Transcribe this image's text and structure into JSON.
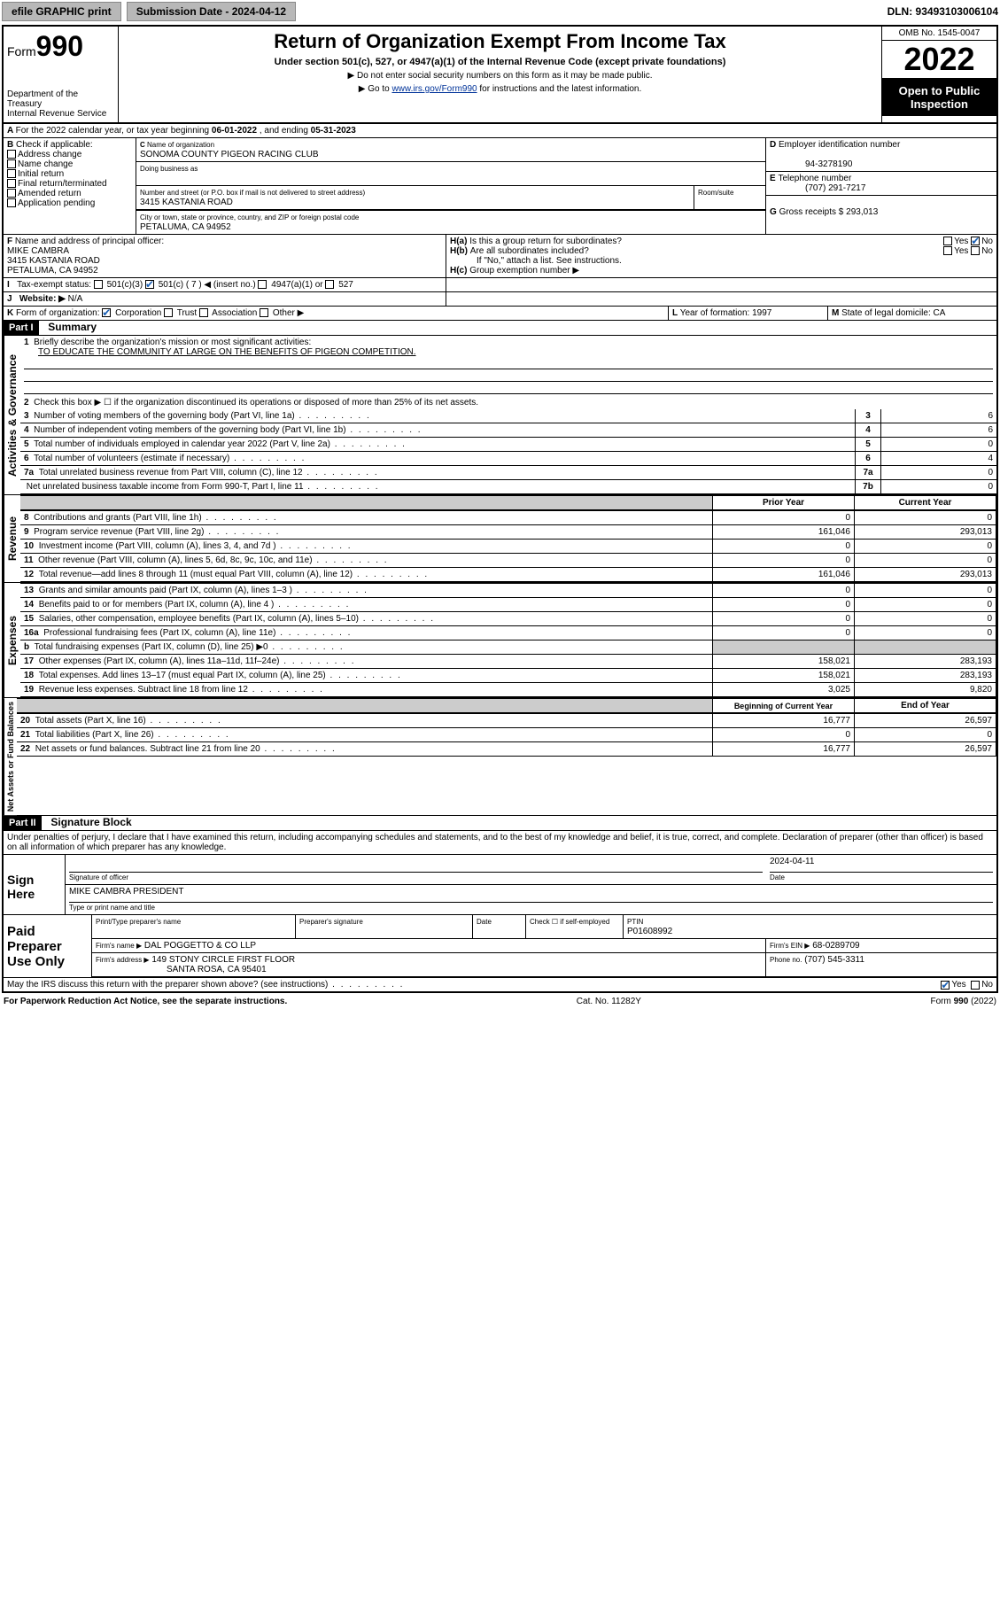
{
  "topbar": {
    "efile": "efile GRAPHIC print",
    "submission_label": "Submission Date - 2024-04-12",
    "dln": "DLN: 93493103006104"
  },
  "header": {
    "form_label": "Form",
    "form_number": "990",
    "dept": "Department of the Treasury",
    "irs": "Internal Revenue Service",
    "title": "Return of Organization Exempt From Income Tax",
    "subtitle": "Under section 501(c), 527, or 4947(a)(1) of the Internal Revenue Code (except private foundations)",
    "note1": "▶ Do not enter social security numbers on this form as it may be made public.",
    "note2_pre": "▶ Go to ",
    "note2_link": "www.irs.gov/Form990",
    "note2_post": " for instructions and the latest information.",
    "omb": "OMB No. 1545-0047",
    "year": "2022",
    "openpublic": "Open to Public Inspection"
  },
  "A": {
    "text": "For the 2022 calendar year, or tax year beginning ",
    "begin": "06-01-2022",
    "mid": " , and ending ",
    "end": "05-31-2023"
  },
  "B": {
    "label": "Check if applicable:",
    "opts": [
      "Address change",
      "Name change",
      "Initial return",
      "Final return/terminated",
      "Amended return",
      "Application pending"
    ]
  },
  "C": {
    "name_label": "Name of organization",
    "name": "SONOMA COUNTY PIGEON RACING CLUB",
    "dba_label": "Doing business as",
    "street_label": "Number and street (or P.O. box if mail is not delivered to street address)",
    "room_label": "Room/suite",
    "street": "3415 KASTANIA ROAD",
    "city_label": "City or town, state or province, country, and ZIP or foreign postal code",
    "city": "PETALUMA, CA  94952"
  },
  "D": {
    "label": "Employer identification number",
    "value": "94-3278190"
  },
  "E": {
    "label": "Telephone number",
    "value": "(707) 291-7217"
  },
  "G": {
    "label": "Gross receipts $",
    "value": "293,013"
  },
  "F": {
    "label": "Name and address of principal officer:",
    "name": "MIKE CAMBRA",
    "street": "3415 KASTANIA ROAD",
    "city": "PETALUMA, CA  94952"
  },
  "H": {
    "a": "Is this a group return for subordinates?",
    "b": "Are all subordinates included?",
    "b_note": "If \"No,\" attach a list. See instructions.",
    "c": "Group exemption number ▶",
    "yes": "Yes",
    "no": "No"
  },
  "I": {
    "label": "Tax-exempt status:",
    "opt1": "501(c)(3)",
    "opt2": "501(c) ( 7 ) ◀ (insert no.)",
    "opt3": "4947(a)(1) or",
    "opt4": "527"
  },
  "J": {
    "label": "Website: ▶",
    "value": "N/A"
  },
  "K": {
    "label": "Form of organization:",
    "opts": [
      "Corporation",
      "Trust",
      "Association",
      "Other ▶"
    ]
  },
  "L": {
    "label": "Year of formation:",
    "value": "1997"
  },
  "M": {
    "label": "State of legal domicile:",
    "value": "CA"
  },
  "part1": {
    "hdr": "Part I",
    "title": "Summary",
    "vlabels": [
      "Activities & Governance",
      "Revenue",
      "Expenses",
      "Net Assets or Fund Balances"
    ],
    "q1_label": "Briefly describe the organization's mission or most significant activities:",
    "q1_text": "TO EDUCATE THE COMMUNITY AT LARGE ON THE BENEFITS OF PIGEON COMPETITION.",
    "q2": "Check this box ▶ ☐  if the organization discontinued its operations or disposed of more than 25% of its net assets.",
    "lines_gov": [
      {
        "n": "3",
        "t": "Number of voting members of the governing body (Part VI, line 1a)",
        "box": "3",
        "v": "6"
      },
      {
        "n": "4",
        "t": "Number of independent voting members of the governing body (Part VI, line 1b)",
        "box": "4",
        "v": "6"
      },
      {
        "n": "5",
        "t": "Total number of individuals employed in calendar year 2022 (Part V, line 2a)",
        "box": "5",
        "v": "0"
      },
      {
        "n": "6",
        "t": "Total number of volunteers (estimate if necessary)",
        "box": "6",
        "v": "4"
      },
      {
        "n": "7a",
        "t": "Total unrelated business revenue from Part VIII, column (C), line 12",
        "box": "7a",
        "v": "0"
      },
      {
        "n": "",
        "t": "Net unrelated business taxable income from Form 990-T, Part I, line 11",
        "box": "7b",
        "v": "0"
      }
    ],
    "col_prior": "Prior Year",
    "col_current": "Current Year",
    "lines_rev": [
      {
        "n": "8",
        "t": "Contributions and grants (Part VIII, line 1h)",
        "p": "0",
        "c": "0"
      },
      {
        "n": "9",
        "t": "Program service revenue (Part VIII, line 2g)",
        "p": "161,046",
        "c": "293,013"
      },
      {
        "n": "10",
        "t": "Investment income (Part VIII, column (A), lines 3, 4, and 7d )",
        "p": "0",
        "c": "0"
      },
      {
        "n": "11",
        "t": "Other revenue (Part VIII, column (A), lines 5, 6d, 8c, 9c, 10c, and 11e)",
        "p": "0",
        "c": "0"
      },
      {
        "n": "12",
        "t": "Total revenue—add lines 8 through 11 (must equal Part VIII, column (A), line 12)",
        "p": "161,046",
        "c": "293,013"
      }
    ],
    "lines_exp": [
      {
        "n": "13",
        "t": "Grants and similar amounts paid (Part IX, column (A), lines 1–3 )",
        "p": "0",
        "c": "0"
      },
      {
        "n": "14",
        "t": "Benefits paid to or for members (Part IX, column (A), line 4 )",
        "p": "0",
        "c": "0"
      },
      {
        "n": "15",
        "t": "Salaries, other compensation, employee benefits (Part IX, column (A), lines 5–10)",
        "p": "0",
        "c": "0"
      },
      {
        "n": "16a",
        "t": "Professional fundraising fees (Part IX, column (A), line 11e)",
        "p": "0",
        "c": "0"
      },
      {
        "n": "b",
        "t": "Total fundraising expenses (Part IX, column (D), line 25) ▶0",
        "p": "",
        "c": "",
        "shade": true
      },
      {
        "n": "17",
        "t": "Other expenses (Part IX, column (A), lines 11a–11d, 11f–24e)",
        "p": "158,021",
        "c": "283,193"
      },
      {
        "n": "18",
        "t": "Total expenses. Add lines 13–17 (must equal Part IX, column (A), line 25)",
        "p": "158,021",
        "c": "283,193"
      },
      {
        "n": "19",
        "t": "Revenue less expenses. Subtract line 18 from line 12",
        "p": "3,025",
        "c": "9,820"
      }
    ],
    "col_begin": "Beginning of Current Year",
    "col_end": "End of Year",
    "lines_net": [
      {
        "n": "20",
        "t": "Total assets (Part X, line 16)",
        "p": "16,777",
        "c": "26,597"
      },
      {
        "n": "21",
        "t": "Total liabilities (Part X, line 26)",
        "p": "0",
        "c": "0"
      },
      {
        "n": "22",
        "t": "Net assets or fund balances. Subtract line 21 from line 20",
        "p": "16,777",
        "c": "26,597"
      }
    ]
  },
  "part2": {
    "hdr": "Part II",
    "title": "Signature Block",
    "decl": "Under penalties of perjury, I declare that I have examined this return, including accompanying schedules and statements, and to the best of my knowledge and belief, it is true, correct, and complete. Declaration of preparer (other than officer) is based on all information of which preparer has any knowledge.",
    "sign_here": "Sign Here",
    "sig_officer": "Signature of officer",
    "sig_date_label": "Date",
    "sig_date": "2024-04-11",
    "sig_name": "MIKE CAMBRA  PRESIDENT",
    "sig_name_label": "Type or print name and title",
    "paid": "Paid Preparer Use Only",
    "prep_name_label": "Print/Type preparer's name",
    "prep_sig_label": "Preparer's signature",
    "prep_date_label": "Date",
    "prep_check": "Check ☐ if self-employed",
    "ptin_label": "PTIN",
    "ptin": "P01608992",
    "firm_name_label": "Firm's name   ▶",
    "firm_name": "DAL POGGETTO & CO LLP",
    "firm_ein_label": "Firm's EIN ▶",
    "firm_ein": "68-0289709",
    "firm_addr_label": "Firm's address ▶",
    "firm_addr1": "149 STONY CIRCLE FIRST FLOOR",
    "firm_addr2": "SANTA ROSA, CA  95401",
    "firm_phone_label": "Phone no.",
    "firm_phone": "(707) 545-3311",
    "discuss": "May the IRS discuss this return with the preparer shown above? (see instructions)"
  },
  "footer": {
    "left": "For Paperwork Reduction Act Notice, see the separate instructions.",
    "mid": "Cat. No. 11282Y",
    "right": "Form 990 (2022)"
  }
}
